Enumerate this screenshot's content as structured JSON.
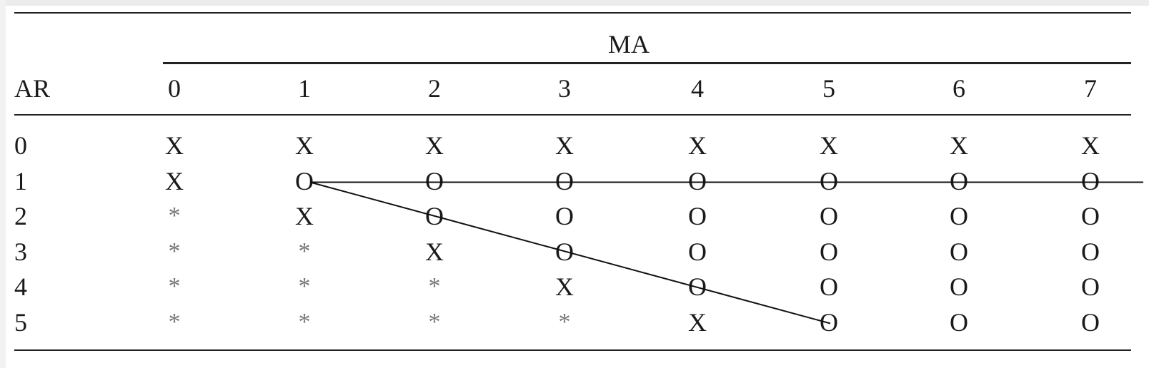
{
  "table": {
    "column_group_header": "MA",
    "row_header": "AR",
    "ma_orders": [
      "0",
      "1",
      "2",
      "3",
      "4",
      "5",
      "6",
      "7"
    ],
    "rows": [
      {
        "ar": "0",
        "cells": [
          "X",
          "X",
          "X",
          "X",
          "X",
          "X",
          "X",
          "X"
        ]
      },
      {
        "ar": "1",
        "cells": [
          "X",
          "O",
          "O",
          "O",
          "O",
          "O",
          "O",
          "O"
        ]
      },
      {
        "ar": "2",
        "cells": [
          "*",
          "X",
          "O",
          "O",
          "O",
          "O",
          "O",
          "O"
        ]
      },
      {
        "ar": "3",
        "cells": [
          "*",
          "*",
          "X",
          "O",
          "O",
          "O",
          "O",
          "O"
        ]
      },
      {
        "ar": "4",
        "cells": [
          "*",
          "*",
          "*",
          "X",
          "O",
          "O",
          "O",
          "O"
        ]
      },
      {
        "ar": "5",
        "cells": [
          "*",
          "*",
          "*",
          "*",
          "X",
          "O",
          "O",
          "O"
        ]
      }
    ]
  },
  "overlay": {
    "line_color": "#111111",
    "horizontal_line": {
      "from_cell": [
        1,
        1
      ],
      "to_cell": [
        1,
        7
      ],
      "extends_past_table": true
    },
    "diagonal_line": {
      "from_cell": [
        1,
        1
      ],
      "to_cell": [
        5,
        5
      ]
    }
  }
}
